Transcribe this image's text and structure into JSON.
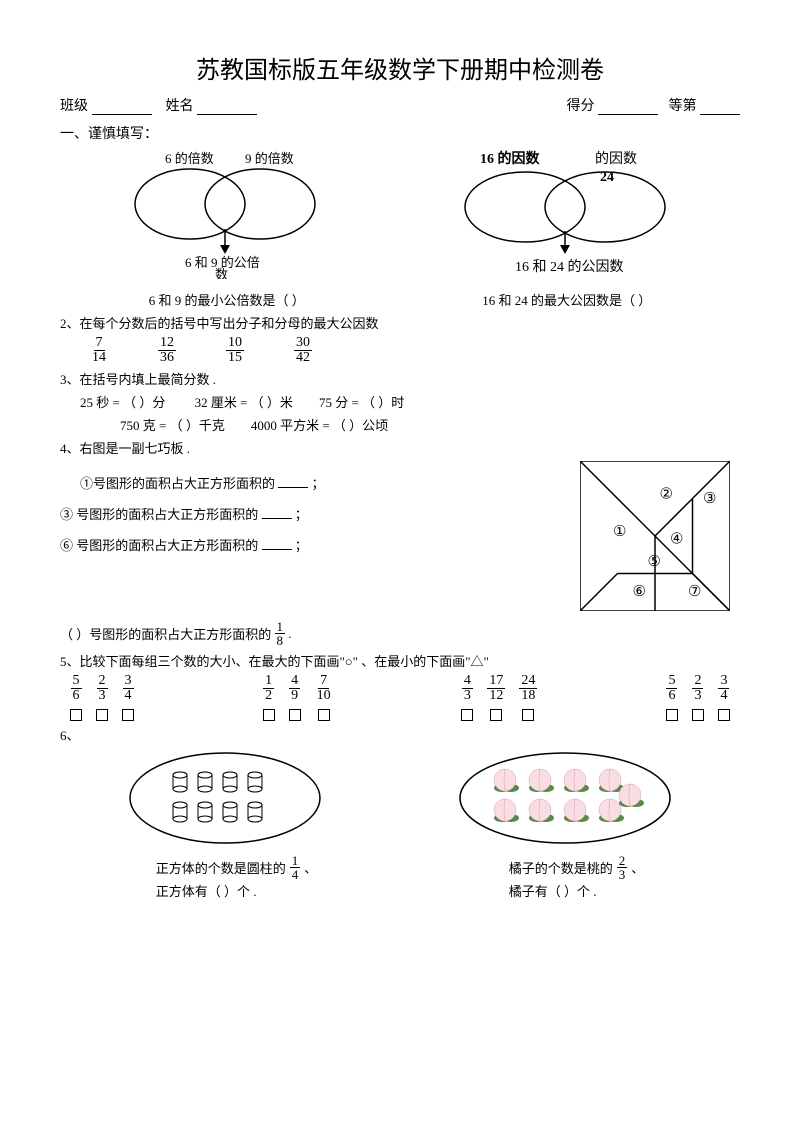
{
  "title": "苏教国标版五年级数学下册期中检测卷",
  "header": {
    "class_label": "班级",
    "name_label": "姓名",
    "score_label": "得分",
    "rank_label": "等第"
  },
  "section1": {
    "heading": "一、谨慎填写：",
    "venn_left": {
      "label_l": "6 的倍数",
      "label_r": "9 的倍数",
      "bottom1": "6 和 9 的公倍",
      "bottom2": "数",
      "q": "6 和 9 的最小公倍数是（      ）"
    },
    "venn_right": {
      "label_l": "16 的因数",
      "label_r": "的因数",
      "label_r_num": "24",
      "bottom": "16 和 24 的公因数",
      "q": "16 和 24 的最大公因数是（      ）"
    }
  },
  "q2": {
    "text": "2、在每个分数后的括号中写出分子和分母的最大公因数",
    "fracs": [
      {
        "n": "7",
        "d": "14"
      },
      {
        "n": "12",
        "d": "36"
      },
      {
        "n": "10",
        "d": "15"
      },
      {
        "n": "30",
        "d": "42"
      }
    ]
  },
  "q3": {
    "text": "3、在括号内填上最简分数 .",
    "items": [
      "25 秒 = （       ）分",
      "32 厘米  = （     ）米",
      "75 分 = （        ）时",
      "750 克 = （        ）千克",
      "4000 平方米  = （       ）公顷"
    ]
  },
  "q4": {
    "text": "4、右图是一副七巧板 .",
    "line1": "①号图形的面积占大正方形面积的",
    "line2_pre": "③",
    "line2": " 号图形的面积占大正方形面积的",
    "line3_pre": "⑥",
    "line3": " 号图形的面积占大正方形面积的",
    "line4": "（      ）号图形的面积占大正方形面积的",
    "frac4": {
      "n": "1",
      "d": "8"
    },
    "tangram_labels": [
      "①",
      "②",
      "③",
      "④",
      "⑤",
      "⑥",
      "⑦"
    ]
  },
  "q5": {
    "text": "5、比较下面每组三个数的大小、在最大的下面画\"○\"    、在最小的下面画\"△\"",
    "groups": [
      [
        {
          "n": "5",
          "d": "6"
        },
        {
          "n": "2",
          "d": "3"
        },
        {
          "n": "3",
          "d": "4"
        }
      ],
      [
        {
          "n": "1",
          "d": "2"
        },
        {
          "n": "4",
          "d": "9"
        },
        {
          "n": "7",
          "d": "10"
        }
      ],
      [
        {
          "n": "4",
          "d": "3"
        },
        {
          "n": "17",
          "d": "12"
        },
        {
          "n": "24",
          "d": "18"
        }
      ],
      [
        {
          "n": "5",
          "d": "6"
        },
        {
          "n": "2",
          "d": "3"
        },
        {
          "n": "3",
          "d": "4"
        }
      ]
    ]
  },
  "q6": {
    "left_text1": "正方体的个数是圆柱的",
    "left_frac": {
      "n": "1",
      "d": "4"
    },
    "left_text2": "正方体有（        ）个 .",
    "right_text1": "橘子的个数是桃的",
    "right_frac": {
      "n": "2",
      "d": "3"
    },
    "right_text2": "橘子有（        ）个 .",
    "cylinder_count": 8,
    "peach_count": 9
  },
  "colors": {
    "text": "#000000",
    "bg": "#ffffff",
    "peach_fill": "#fadde3",
    "peach_leaf": "#5a8a4a",
    "cylinder_stroke": "#000000"
  }
}
